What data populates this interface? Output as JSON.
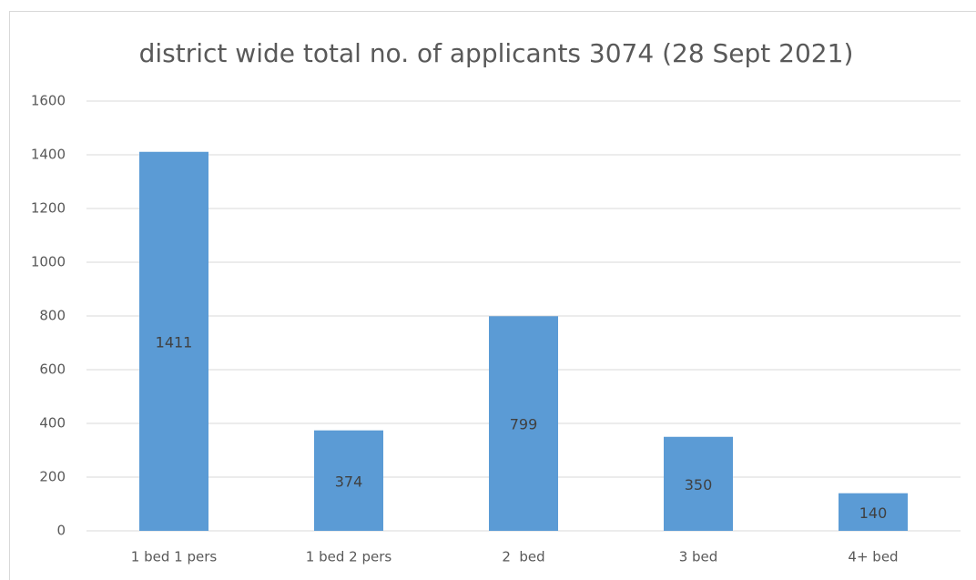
{
  "chart_data": {
    "type": "bar",
    "title": "district wide total no. of applicants 3074 (28 Sept 2021)",
    "categories": [
      "1 bed 1 pers",
      "1 bed 2 pers",
      "2  bed",
      "3 bed",
      "4+ bed"
    ],
    "values": [
      1411,
      374,
      799,
      350,
      140
    ],
    "color": "#5b9bd5",
    "ylim": [
      0,
      1600
    ],
    "yticks": [
      0,
      200,
      400,
      600,
      800,
      1000,
      1200,
      1400,
      1600
    ],
    "grid": true
  }
}
